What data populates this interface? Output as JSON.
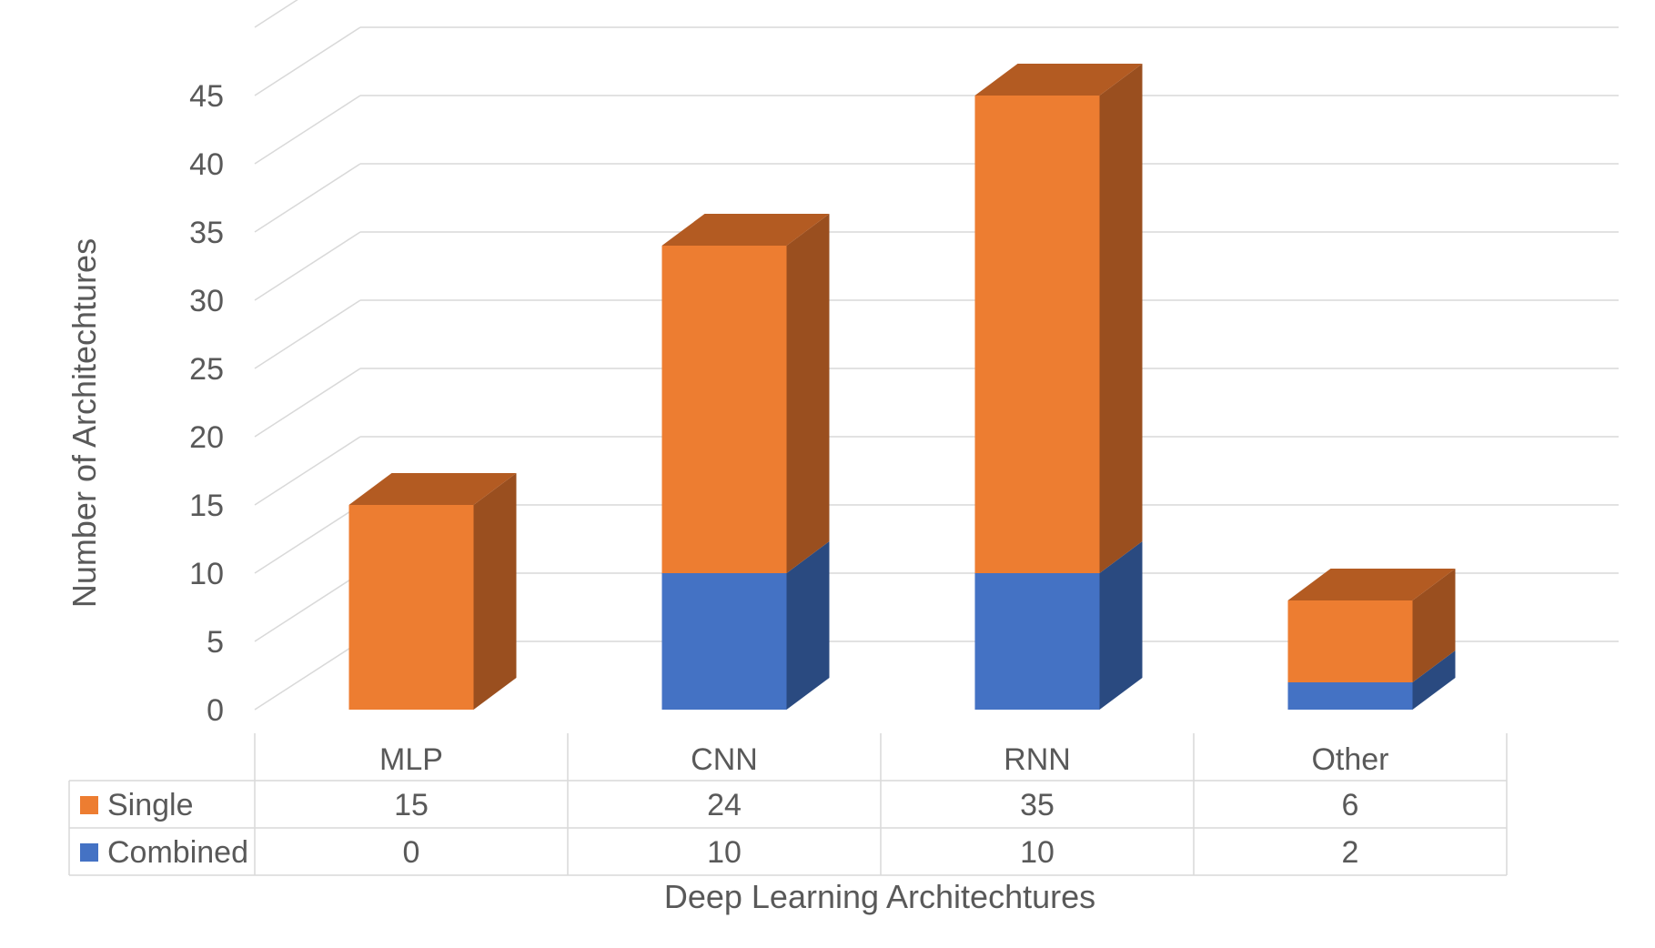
{
  "chart_data": {
    "type": "bar",
    "stacked": true,
    "three_d": true,
    "title": "",
    "categories": [
      "MLP",
      "CNN",
      "RNN",
      "Other"
    ],
    "series": [
      {
        "name": "Combined",
        "values": [
          0,
          10,
          10,
          2
        ],
        "color": "#4472C4",
        "side_color": "#2A4A80"
      },
      {
        "name": "Single",
        "values": [
          15,
          24,
          35,
          6
        ],
        "color": "#ED7D31",
        "side_color": "#9A4F1F",
        "top_color": "#B35B22"
      }
    ],
    "table_order": [
      "Single",
      "Combined"
    ],
    "xlabel": "Deep Learning Architechtures",
    "ylabel": "Number of Architechtures",
    "ylim": [
      0,
      45
    ],
    "yticks": [
      "0",
      "5",
      "10",
      "15",
      "20",
      "25",
      "30",
      "35",
      "40",
      "45"
    ],
    "grid": true,
    "data_table": true,
    "legend": "data-table"
  }
}
